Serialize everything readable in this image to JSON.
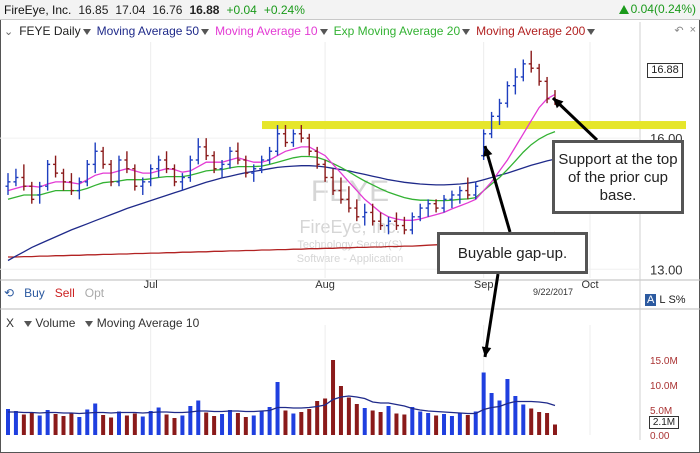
{
  "quote": {
    "company": "FireEye, Inc.",
    "open": "16.85",
    "high": "17.04",
    "low": "16.76",
    "close": "16.88",
    "change": "+0.04",
    "change_pct": "+0.24%",
    "change_right": "0.04(0.24%)"
  },
  "legend": {
    "ticker": "FEYE Daily",
    "ma50": "Moving Average 50",
    "ma10": "Moving Average 10",
    "ema20": "Exp Moving Average 20",
    "ma200": "Moving Average 200",
    "colors": {
      "ma50": "#1f2a8a",
      "ma10": "#e33ad4",
      "ema20": "#33b233",
      "ma200": "#b22222"
    }
  },
  "watermark": {
    "symbol": "FEYE",
    "name": "FireEye, Inc.",
    "sector": "Technology Sector(S)",
    "industry": "Software - Application"
  },
  "trade_buttons": {
    "buy": "Buy",
    "sell": "Sell",
    "opt": "Opt"
  },
  "volume_panel": {
    "x": "X",
    "label": "Volume",
    "ma": "Moving Average 10"
  },
  "price_badge": "16.88",
  "volume_badge": "2.1M",
  "date_label": "9/22/2017",
  "side_icons": {
    "a": "A",
    "l": "L",
    "s": "S%"
  },
  "callouts": {
    "support": "Support at the top of the prior cup base.",
    "gap": "Buyable gap-up."
  },
  "chart_data": {
    "type": "candlestick",
    "x_tick_labels": [
      "Jul",
      "Aug",
      "Sep",
      "Oct"
    ],
    "y_tick_labels": [
      "16.00",
      "13.00"
    ],
    "volume_tick_labels": [
      "15.0M",
      "10.0M",
      "5.0M",
      "0.00"
    ],
    "ylim": [
      12.8,
      18.2
    ],
    "volume_ylim": [
      0,
      20
    ],
    "support_level": 16.3,
    "ohlc": [
      [
        14.9,
        15.2,
        14.7,
        15.0
      ],
      [
        15.0,
        15.3,
        14.9,
        15.1
      ],
      [
        15.1,
        15.4,
        14.8,
        14.9
      ],
      [
        14.9,
        15.0,
        14.5,
        14.6
      ],
      [
        14.7,
        15.0,
        14.5,
        14.9
      ],
      [
        14.9,
        15.5,
        14.8,
        15.4
      ],
      [
        15.4,
        15.6,
        15.1,
        15.2
      ],
      [
        15.2,
        15.3,
        14.8,
        15.0
      ],
      [
        15.0,
        15.2,
        14.7,
        14.8
      ],
      [
        14.8,
        15.1,
        14.6,
        15.0
      ],
      [
        15.0,
        15.5,
        14.9,
        15.4
      ],
      [
        15.4,
        15.9,
        15.2,
        15.7
      ],
      [
        15.7,
        15.8,
        15.3,
        15.4
      ],
      [
        15.4,
        15.5,
        14.9,
        15.0
      ],
      [
        15.0,
        15.6,
        14.9,
        15.5
      ],
      [
        15.5,
        15.7,
        15.2,
        15.3
      ],
      [
        15.3,
        15.4,
        14.8,
        14.9
      ],
      [
        14.9,
        15.1,
        14.7,
        15.0
      ],
      [
        15.0,
        15.4,
        14.9,
        15.3
      ],
      [
        15.3,
        15.6,
        15.1,
        15.5
      ],
      [
        15.5,
        15.7,
        15.2,
        15.3
      ],
      [
        15.3,
        15.4,
        14.9,
        15.0
      ],
      [
        15.0,
        15.2,
        14.8,
        15.1
      ],
      [
        15.1,
        15.6,
        15.0,
        15.5
      ],
      [
        15.5,
        16.0,
        15.4,
        15.8
      ],
      [
        15.8,
        16.0,
        15.5,
        15.6
      ],
      [
        15.6,
        15.7,
        15.2,
        15.3
      ],
      [
        15.3,
        15.5,
        15.1,
        15.4
      ],
      [
        15.4,
        15.8,
        15.3,
        15.7
      ],
      [
        15.7,
        15.9,
        15.4,
        15.5
      ],
      [
        15.5,
        15.6,
        15.1,
        15.2
      ],
      [
        15.2,
        15.4,
        15.0,
        15.3
      ],
      [
        15.3,
        15.6,
        15.2,
        15.5
      ],
      [
        15.5,
        15.8,
        15.4,
        15.7
      ],
      [
        15.7,
        16.3,
        15.6,
        16.1
      ],
      [
        16.1,
        16.3,
        15.8,
        15.9
      ],
      [
        15.9,
        16.2,
        15.8,
        16.1
      ],
      [
        16.1,
        16.3,
        15.9,
        16.0
      ],
      [
        16.0,
        16.1,
        15.6,
        15.7
      ],
      [
        15.7,
        15.8,
        15.3,
        15.4
      ],
      [
        15.4,
        15.5,
        15.0,
        15.1
      ],
      [
        15.1,
        15.3,
        14.7,
        14.8
      ],
      [
        14.8,
        15.1,
        14.5,
        14.6
      ],
      [
        14.6,
        14.9,
        14.3,
        14.4
      ],
      [
        14.4,
        14.6,
        14.1,
        14.2
      ],
      [
        14.2,
        14.5,
        14.0,
        14.3
      ],
      [
        14.3,
        14.5,
        14.0,
        14.1
      ],
      [
        14.1,
        14.3,
        13.9,
        14.0
      ],
      [
        14.0,
        14.2,
        13.8,
        14.1
      ],
      [
        14.1,
        14.3,
        13.9,
        14.0
      ],
      [
        14.0,
        14.2,
        13.8,
        13.9
      ],
      [
        13.9,
        14.3,
        13.8,
        14.2
      ],
      [
        14.2,
        14.5,
        14.1,
        14.4
      ],
      [
        14.4,
        14.6,
        14.2,
        14.5
      ],
      [
        14.5,
        14.6,
        14.3,
        14.4
      ],
      [
        14.4,
        14.7,
        14.3,
        14.6
      ],
      [
        14.6,
        14.8,
        14.4,
        14.7
      ],
      [
        14.7,
        14.9,
        14.5,
        14.8
      ],
      [
        14.8,
        15.1,
        14.6,
        14.7
      ],
      [
        14.7,
        15.0,
        14.6,
        14.9
      ],
      [
        15.6,
        16.2,
        15.5,
        16.1
      ],
      [
        16.1,
        16.6,
        16.0,
        16.5
      ],
      [
        16.5,
        16.9,
        16.3,
        16.8
      ],
      [
        16.8,
        17.3,
        16.7,
        17.2
      ],
      [
        17.2,
        17.6,
        17.0,
        17.4
      ],
      [
        17.4,
        17.8,
        17.3,
        17.7
      ],
      [
        17.7,
        18.0,
        17.5,
        17.6
      ],
      [
        17.6,
        17.7,
        17.2,
        17.3
      ],
      [
        17.3,
        17.4,
        16.8,
        16.9
      ],
      [
        16.9,
        17.1,
        16.76,
        16.88
      ]
    ],
    "volume": [
      5.2,
      4.8,
      4.1,
      4.5,
      3.9,
      5.0,
      4.2,
      3.8,
      4.4,
      3.6,
      5.1,
      6.3,
      4.0,
      3.5,
      4.7,
      3.9,
      4.3,
      3.7,
      4.8,
      5.5,
      4.1,
      3.4,
      3.9,
      5.8,
      6.9,
      4.5,
      3.8,
      4.2,
      5.0,
      4.4,
      3.6,
      3.9,
      4.8,
      5.6,
      10.6,
      4.9,
      4.3,
      4.6,
      5.2,
      6.8,
      7.3,
      15.0,
      9.8,
      7.5,
      6.2,
      5.4,
      4.9,
      4.6,
      5.8,
      4.3,
      4.1,
      5.6,
      4.7,
      4.4,
      3.9,
      4.2,
      3.8,
      4.5,
      4.0,
      4.7,
      12.5,
      8.4,
      6.9,
      11.2,
      7.8,
      6.1,
      5.3,
      4.6,
      4.4,
      2.1
    ],
    "ma10": [
      14.8,
      14.85,
      14.9,
      14.9,
      14.88,
      14.95,
      15.0,
      15.0,
      14.98,
      14.95,
      15.05,
      15.15,
      15.2,
      15.2,
      15.25,
      15.3,
      15.25,
      15.2,
      15.2,
      15.25,
      15.3,
      15.28,
      15.22,
      15.25,
      15.35,
      15.45,
      15.45,
      15.45,
      15.5,
      15.55,
      15.5,
      15.45,
      15.45,
      15.5,
      15.6,
      15.7,
      15.75,
      15.8,
      15.8,
      15.7,
      15.6,
      15.4,
      15.2,
      15.0,
      14.8,
      14.6,
      14.45,
      14.3,
      14.2,
      14.15,
      14.12,
      14.12,
      14.15,
      14.2,
      14.25,
      14.3,
      14.38,
      14.45,
      14.52,
      14.6,
      14.8,
      15.0,
      15.25,
      15.5,
      15.8,
      16.1,
      16.4,
      16.7,
      16.9,
      17.0
    ],
    "ema20": [
      14.6,
      14.65,
      14.7,
      14.7,
      14.7,
      14.75,
      14.8,
      14.8,
      14.8,
      14.8,
      14.85,
      14.92,
      14.98,
      15.0,
      15.02,
      15.05,
      15.05,
      15.05,
      15.07,
      15.1,
      15.12,
      15.12,
      15.12,
      15.15,
      15.2,
      15.25,
      15.27,
      15.28,
      15.32,
      15.35,
      15.35,
      15.35,
      15.36,
      15.4,
      15.45,
      15.5,
      15.55,
      15.58,
      15.58,
      15.56,
      15.5,
      15.42,
      15.33,
      15.23,
      15.12,
      15.02,
      14.93,
      14.84,
      14.76,
      14.7,
      14.64,
      14.6,
      14.58,
      14.58,
      14.57,
      14.57,
      14.58,
      14.6,
      14.61,
      14.64,
      14.8,
      14.95,
      15.1,
      15.28,
      15.48,
      15.68,
      15.85,
      15.98,
      16.08,
      16.15
    ],
    "ma50": [
      13.2,
      13.3,
      13.4,
      13.5,
      13.58,
      13.66,
      13.74,
      13.82,
      13.9,
      13.97,
      14.04,
      14.11,
      14.18,
      14.25,
      14.32,
      14.39,
      14.45,
      14.51,
      14.57,
      14.63,
      14.69,
      14.75,
      14.81,
      14.87,
      14.93,
      14.99,
      15.04,
      15.09,
      15.13,
      15.17,
      15.21,
      15.24,
      15.27,
      15.3,
      15.33,
      15.35,
      15.36,
      15.37,
      15.37,
      15.36,
      15.34,
      15.31,
      15.28,
      15.25,
      15.21,
      15.17,
      15.13,
      15.09,
      15.05,
      15.02,
      14.99,
      14.97,
      14.95,
      14.94,
      14.93,
      14.93,
      14.94,
      14.95,
      14.97,
      15.0,
      15.05,
      15.1,
      15.15,
      15.2,
      15.26,
      15.32,
      15.38,
      15.43,
      15.48,
      15.52
    ],
    "ma200": [
      13.28,
      13.28,
      13.29,
      13.29,
      13.3,
      13.3,
      13.31,
      13.31,
      13.32,
      13.32,
      13.33,
      13.33,
      13.34,
      13.34,
      13.35,
      13.35,
      13.36,
      13.36,
      13.37,
      13.37,
      13.38,
      13.38,
      13.39,
      13.39,
      13.4,
      13.4,
      13.41,
      13.41,
      13.42,
      13.42,
      13.43,
      13.43,
      13.44,
      13.44,
      13.45,
      13.45,
      13.46,
      13.46,
      13.47,
      13.47,
      13.48,
      13.48,
      13.49,
      13.49,
      13.5,
      13.5,
      13.51,
      13.51,
      13.52,
      13.52,
      13.53,
      13.53,
      13.54,
      13.55,
      13.56,
      13.57,
      13.58,
      13.6,
      13.62,
      13.64,
      13.66,
      13.68,
      13.7,
      13.72,
      13.74,
      13.76,
      13.78,
      13.8,
      13.82,
      13.84
    ],
    "volume_ma10": [
      4.6,
      4.6,
      4.5,
      4.5,
      4.4,
      4.5,
      4.5,
      4.4,
      4.4,
      4.3,
      4.4,
      4.5,
      4.5,
      4.4,
      4.5,
      4.5,
      4.5,
      4.4,
      4.5,
      4.6,
      4.6,
      4.5,
      4.5,
      4.6,
      4.8,
      4.8,
      4.7,
      4.7,
      4.8,
      4.8,
      4.7,
      4.7,
      4.8,
      4.9,
      5.5,
      5.5,
      5.4,
      5.4,
      5.5,
      5.7,
      6.0,
      7.1,
      7.6,
      7.8,
      7.6,
      7.3,
      6.6,
      6.4,
      6.4,
      6.1,
      5.8,
      5.3,
      5.0,
      4.8,
      4.7,
      4.6,
      4.5,
      4.4,
      4.3,
      4.3,
      5.1,
      5.5,
      5.7,
      6.3,
      6.7,
      6.7,
      6.7,
      6.6,
      6.4,
      5.9
    ]
  }
}
